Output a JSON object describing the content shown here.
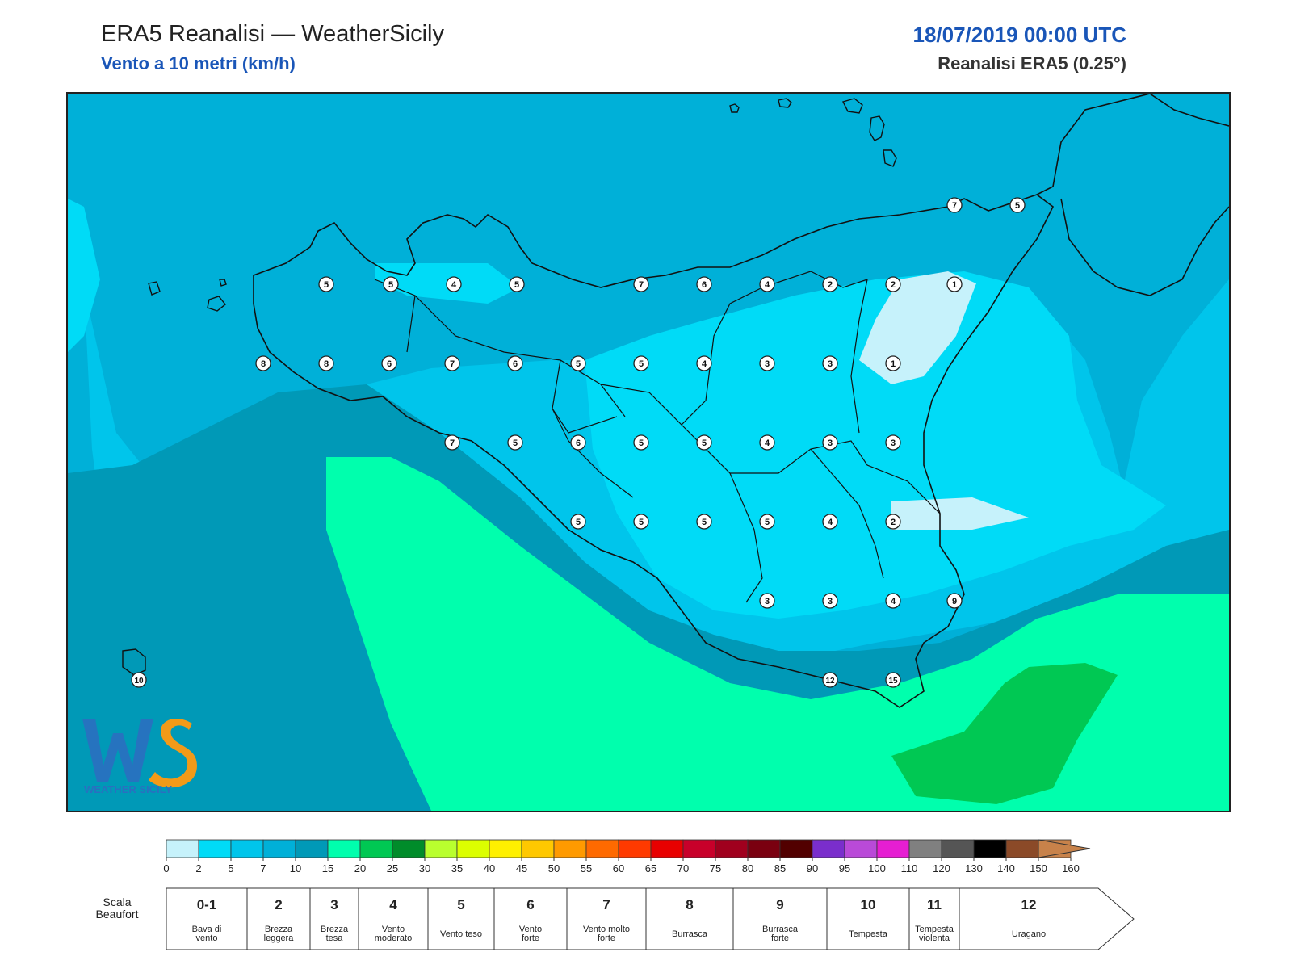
{
  "header": {
    "title": "ERA5 Reanalisi — WeatherSicily",
    "subtitle": "Vento a 10 metri (km/h)",
    "datetime": "18/07/2019 00:00 UTC",
    "product": "Reanalisi ERA5 (0.25°)"
  },
  "colors": {
    "v0_2": "#c6f2fb",
    "v2_5": "#00dbf7",
    "v5_7": "#00c5eb",
    "v7_10": "#00b0d8",
    "v10_15": "#0099b7",
    "v15_20": "#00ffad",
    "v20_25": "#00c853",
    "accent_blue": "#1a56b8"
  },
  "wind_stations": [
    {
      "value": "5"
    },
    {
      "value": "5"
    },
    {
      "value": "4"
    },
    {
      "value": "5"
    },
    {
      "value": "7"
    },
    {
      "value": "6"
    },
    {
      "value": "4"
    },
    {
      "value": "2"
    },
    {
      "value": "2"
    },
    {
      "value": "1"
    },
    {
      "value": "8"
    },
    {
      "value": "8"
    },
    {
      "value": "6"
    },
    {
      "value": "7"
    },
    {
      "value": "6"
    },
    {
      "value": "5"
    },
    {
      "value": "5"
    },
    {
      "value": "4"
    },
    {
      "value": "3"
    },
    {
      "value": "3"
    },
    {
      "value": "1"
    },
    {
      "value": "7"
    },
    {
      "value": "5"
    },
    {
      "value": "6"
    },
    {
      "value": "5"
    },
    {
      "value": "5"
    },
    {
      "value": "4"
    },
    {
      "value": "3"
    },
    {
      "value": "3"
    },
    {
      "value": "5"
    },
    {
      "value": "5"
    },
    {
      "value": "5"
    },
    {
      "value": "5"
    },
    {
      "value": "4"
    },
    {
      "value": "2"
    },
    {
      "value": "3"
    },
    {
      "value": "3"
    },
    {
      "value": "4"
    },
    {
      "value": "9"
    },
    {
      "value": "12"
    },
    {
      "value": "15"
    },
    {
      "value": "7"
    },
    {
      "value": "5"
    },
    {
      "value": "10"
    }
  ],
  "logo": {
    "text": "WEATHER SICILY"
  },
  "colorbar": {
    "ticks": [
      "0",
      "2",
      "5",
      "7",
      "10",
      "15",
      "20",
      "25",
      "30",
      "35",
      "40",
      "45",
      "50",
      "55",
      "60",
      "65",
      "70",
      "75",
      "80",
      "85",
      "90",
      "95",
      "100",
      "110",
      "120",
      "130",
      "140",
      "150",
      "160"
    ],
    "colors": [
      "#c6f2fb",
      "#00dbf7",
      "#00c5eb",
      "#00b0d8",
      "#0099b7",
      "#00ffad",
      "#00c853",
      "#008c2a",
      "#b9ff2e",
      "#dcff00",
      "#fff000",
      "#ffc800",
      "#ff9a00",
      "#ff6a00",
      "#ff3a00",
      "#e80000",
      "#c8002a",
      "#a0001e",
      "#7a0010",
      "#520000",
      "#7a2ecc",
      "#b94ad8",
      "#e61ed2",
      "#808080",
      "#555555",
      "#000000",
      "#8b4a28",
      "#c8824a"
    ]
  },
  "beaufort": {
    "title_line1": "Scala",
    "title_line2": "Beaufort",
    "classes": [
      {
        "num": "0-1",
        "line1": "Bava di",
        "line2": "vento"
      },
      {
        "num": "2",
        "line1": "Brezza",
        "line2": "leggera"
      },
      {
        "num": "3",
        "line1": "Brezza",
        "line2": "tesa"
      },
      {
        "num": "4",
        "line1": "Vento",
        "line2": "moderato"
      },
      {
        "num": "5",
        "line1": "Vento teso",
        "line2": ""
      },
      {
        "num": "6",
        "line1": "Vento",
        "line2": "forte"
      },
      {
        "num": "7",
        "line1": "Vento molto",
        "line2": "forte"
      },
      {
        "num": "8",
        "line1": "Burrasca",
        "line2": ""
      },
      {
        "num": "9",
        "line1": "Burrasca",
        "line2": "forte"
      },
      {
        "num": "10",
        "line1": "Tempesta",
        "line2": ""
      },
      {
        "num": "11",
        "line1": "Tempesta",
        "line2": "violenta"
      },
      {
        "num": "12",
        "line1": "Uragano",
        "line2": ""
      }
    ]
  }
}
